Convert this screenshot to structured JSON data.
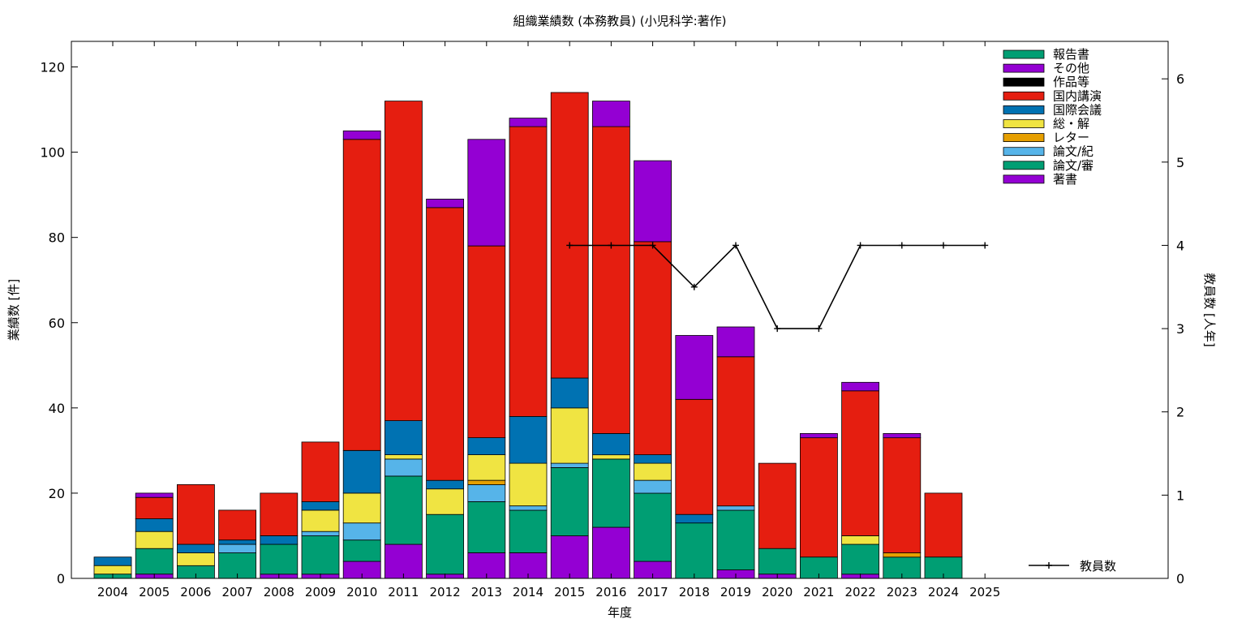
{
  "chart_data": {
    "type": "bar",
    "stacked": true,
    "title": "組織業績数 (本務教員) (小児科学:著作)",
    "xlabel": "年度",
    "ylabel": "業績数 [件]",
    "y2label": "教員数 [人年]",
    "categories": [
      "2004",
      "2005",
      "2006",
      "2007",
      "2008",
      "2009",
      "2010",
      "2011",
      "2012",
      "2013",
      "2014",
      "2015",
      "2016",
      "2017",
      "2018",
      "2019",
      "2020",
      "2021",
      "2022",
      "2023",
      "2024",
      "2025"
    ],
    "ylim": [
      0,
      126
    ],
    "y2lim": [
      0,
      6.45
    ],
    "yticks": [
      0,
      20,
      40,
      60,
      80,
      100,
      120
    ],
    "y2ticks": [
      0,
      1,
      2,
      3,
      4,
      5,
      6
    ],
    "legend_position": "top-right",
    "series": [
      {
        "name": "著書",
        "color": "#9400d3",
        "values": [
          0,
          1,
          0,
          0,
          1,
          1,
          4,
          8,
          1,
          6,
          6,
          10,
          12,
          4,
          0,
          2,
          1,
          0,
          1,
          0,
          0,
          0
        ]
      },
      {
        "name": "論文/審",
        "color": "#009e73",
        "values": [
          1,
          6,
          3,
          6,
          7,
          9,
          5,
          16,
          14,
          12,
          10,
          16,
          16,
          16,
          13,
          14,
          6,
          5,
          7,
          5,
          5,
          0
        ]
      },
      {
        "name": "論文/紀",
        "color": "#56b4e9",
        "values": [
          0,
          0,
          0,
          2,
          0,
          1,
          4,
          4,
          0,
          4,
          1,
          1,
          0,
          3,
          0,
          1,
          0,
          0,
          0,
          0,
          0,
          0
        ]
      },
      {
        "name": "レター",
        "color": "#e69f00",
        "values": [
          0,
          0,
          0,
          0,
          0,
          0,
          0,
          0,
          0,
          1,
          0,
          0,
          0,
          0,
          0,
          0,
          0,
          0,
          0,
          1,
          0,
          0
        ]
      },
      {
        "name": "総・解",
        "color": "#f0e442",
        "values": [
          2,
          4,
          3,
          0,
          0,
          5,
          7,
          1,
          6,
          6,
          10,
          13,
          1,
          4,
          0,
          0,
          0,
          0,
          2,
          0,
          0,
          0
        ]
      },
      {
        "name": "国際会議",
        "color": "#0072b2",
        "values": [
          2,
          3,
          2,
          1,
          2,
          2,
          10,
          8,
          2,
          4,
          11,
          7,
          5,
          2,
          2,
          0,
          0,
          0,
          0,
          0,
          0,
          0
        ]
      },
      {
        "name": "国内講演",
        "color": "#e51e10",
        "values": [
          0,
          5,
          14,
          7,
          10,
          14,
          73,
          75,
          64,
          45,
          68,
          67,
          72,
          50,
          27,
          35,
          20,
          28,
          34,
          27,
          15,
          0
        ]
      },
      {
        "name": "作品等",
        "color": "#000000",
        "values": [
          0,
          0,
          0,
          0,
          0,
          0,
          0,
          0,
          0,
          0,
          0,
          0,
          0,
          0,
          0,
          0,
          0,
          0,
          0,
          0,
          0,
          0
        ]
      },
      {
        "name": "その他",
        "color": "#9400d3",
        "values": [
          0,
          1,
          0,
          0,
          0,
          0,
          2,
          0,
          2,
          25,
          2,
          0,
          6,
          19,
          15,
          7,
          0,
          1,
          2,
          1,
          0,
          0
        ]
      },
      {
        "name": "報告書",
        "color": "#009e73",
        "values": [
          0,
          0,
          0,
          0,
          0,
          0,
          0,
          0,
          0,
          0,
          0,
          0,
          0,
          0,
          0,
          0,
          0,
          0,
          0,
          0,
          0,
          0
        ]
      }
    ],
    "line_series": {
      "name": "教員数",
      "color": "#000000",
      "axis": "y2",
      "x": [
        "2015",
        "2016",
        "2017",
        "2018",
        "2019",
        "2020",
        "2021",
        "2022",
        "2023",
        "2024",
        "2025"
      ],
      "values": [
        4,
        4,
        4,
        3.5,
        4,
        3,
        3,
        4,
        4,
        4,
        4
      ]
    }
  }
}
